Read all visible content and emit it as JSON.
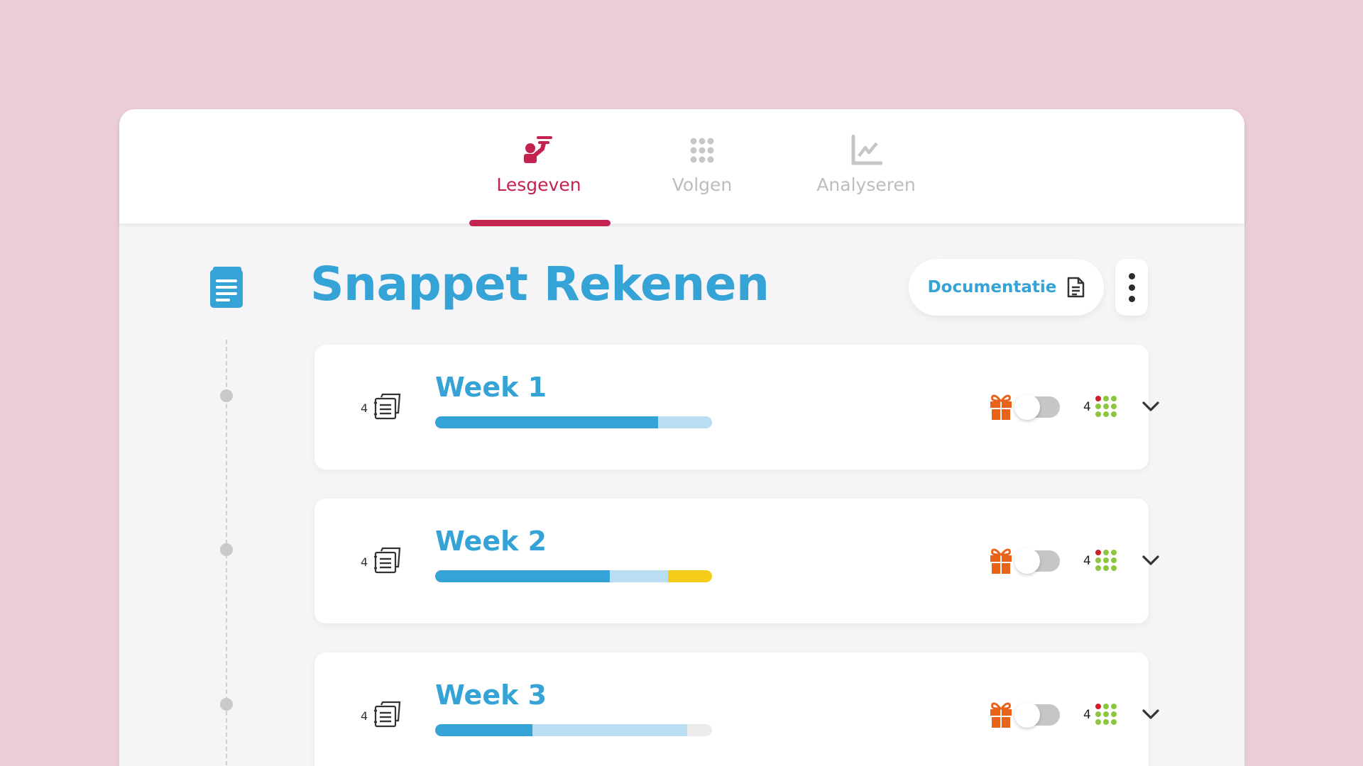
{
  "nav": {
    "tabs": [
      {
        "label": "Lesgeven",
        "icon": "teacher-icon",
        "active": true
      },
      {
        "label": "Volgen",
        "icon": "grid-dots-icon",
        "active": false
      },
      {
        "label": "Analyseren",
        "icon": "chart-line-icon",
        "active": false
      }
    ]
  },
  "colors": {
    "accent": "#c4234f",
    "primary": "#35a3d6",
    "light": "#b9ddf1",
    "yellow": "#f5cc1a",
    "gift": "#e8621a",
    "green": "#8cc63f",
    "red": "#d0202e"
  },
  "course": {
    "title": "Snappet Rekenen",
    "documentation_label": "Documentatie"
  },
  "weeks": [
    {
      "title": "Week 1",
      "lesson_count": "4",
      "dots_count": "4",
      "progress": {
        "completed": 80.5,
        "planned": 19.5,
        "attention": 0,
        "remaining": 0
      },
      "toggle_on": false
    },
    {
      "title": "Week 2",
      "lesson_count": "4",
      "dots_count": "4",
      "progress": {
        "completed": 63,
        "planned": 21,
        "attention": 16,
        "remaining": 0
      },
      "toggle_on": false
    },
    {
      "title": "Week 3",
      "lesson_count": "4",
      "dots_count": "4",
      "progress": {
        "completed": 35,
        "planned": 56,
        "attention": 0,
        "remaining": 9
      },
      "toggle_on": false
    }
  ]
}
